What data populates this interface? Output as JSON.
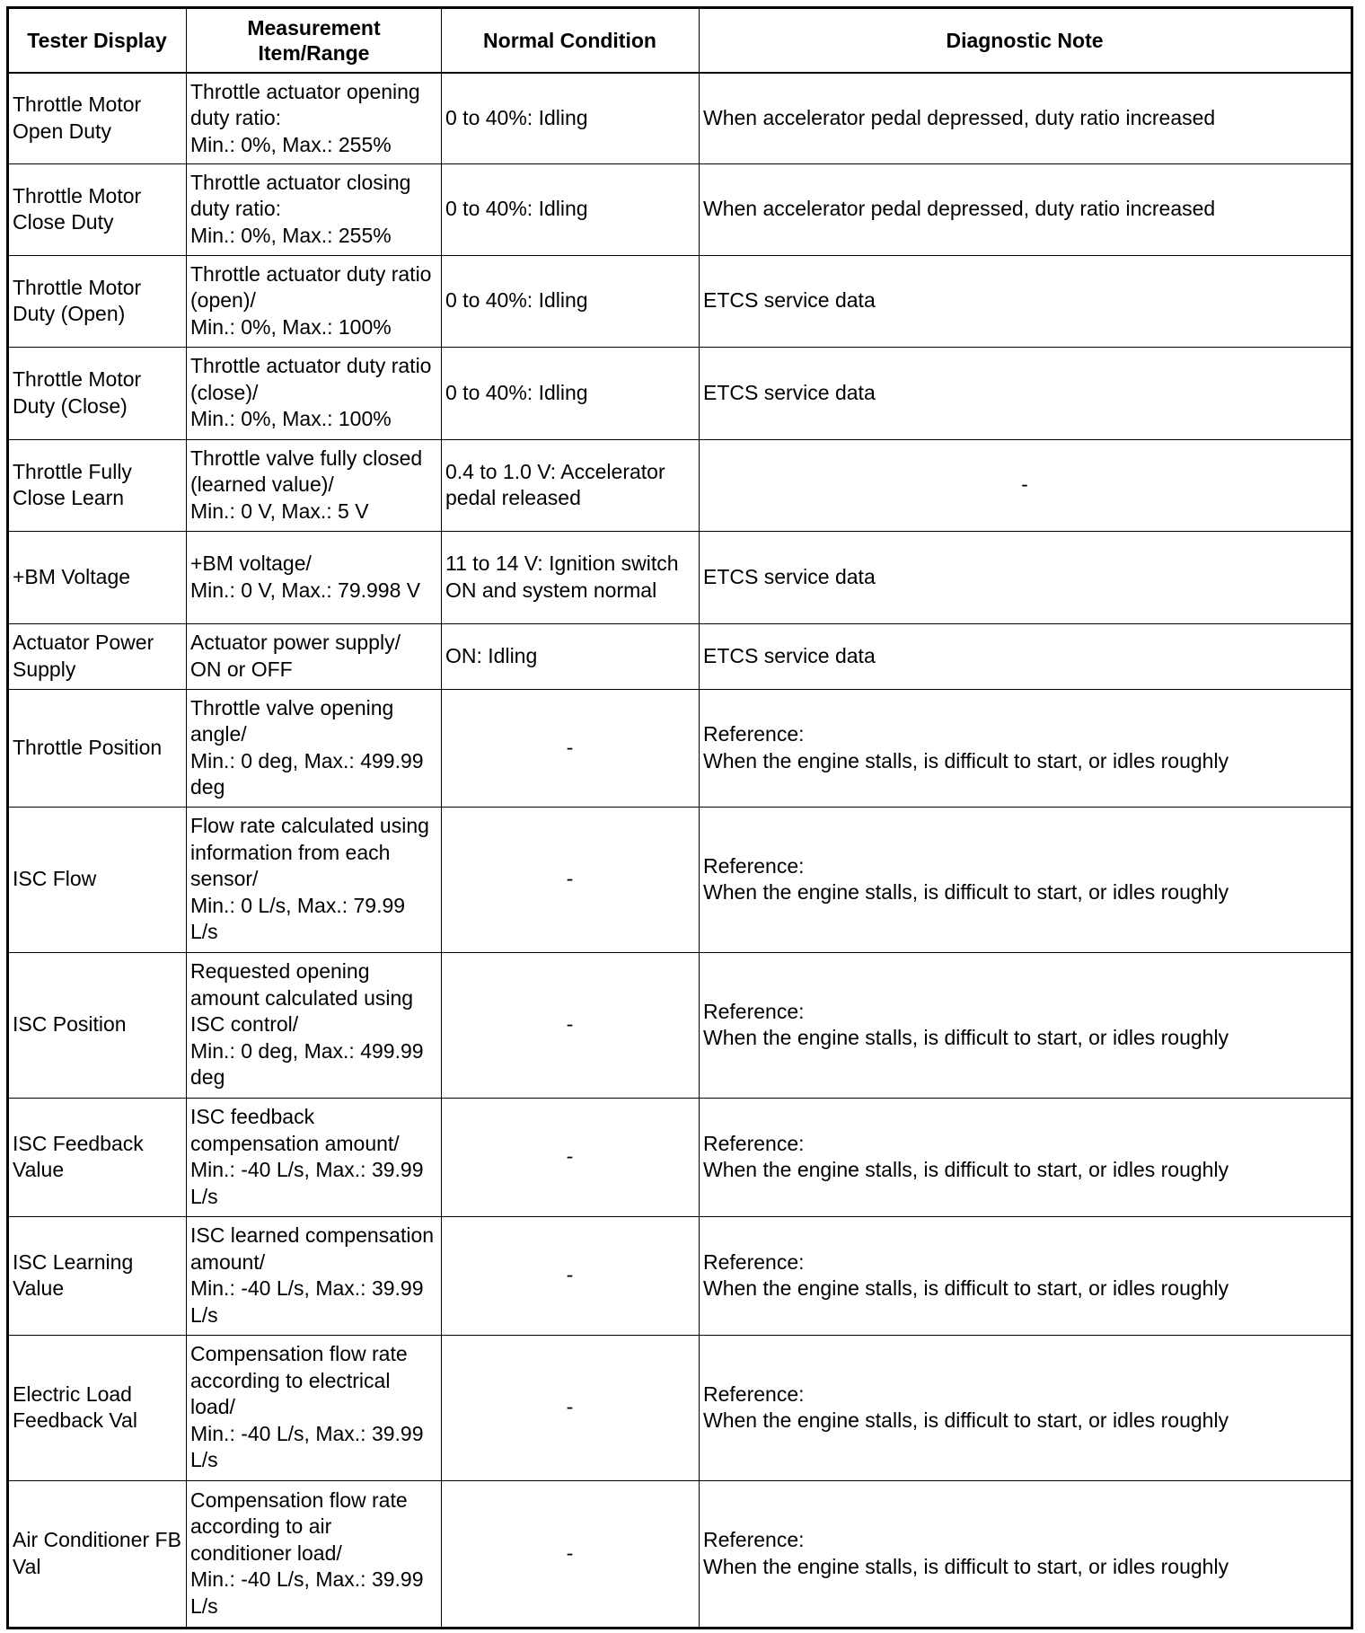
{
  "headers": [
    "Tester Display",
    "Measurement Item/Range",
    "Normal Condition",
    "Diagnostic Note"
  ],
  "rows": [
    {
      "display": "Throttle Motor Open Duty",
      "range": "Throttle actuator opening duty ratio:\nMin.: 0%, Max.: 255%",
      "normal": "0 to 40%: Idling",
      "note": "When accelerator pedal depressed, duty ratio increased"
    },
    {
      "display": "Throttle Motor Close Duty",
      "range": "Throttle actuator closing duty ratio:\nMin.: 0%, Max.: 255%",
      "normal": "0 to 40%: Idling",
      "note": "When accelerator pedal depressed, duty ratio increased"
    },
    {
      "display": "Throttle Motor Duty (Open)",
      "range": "Throttle actuator duty ratio (open)/\nMin.: 0%, Max.: 100%",
      "normal": "0 to 40%: Idling",
      "note": "ETCS service data"
    },
    {
      "display": "Throttle Motor Duty (Close)",
      "range": "Throttle actuator duty ratio (close)/\nMin.: 0%, Max.: 100%",
      "normal": "0 to 40%: Idling",
      "note": "ETCS service data"
    },
    {
      "display": "Throttle Fully Close Learn",
      "range": "Throttle valve fully closed (learned value)/\nMin.: 0 V, Max.: 5 V",
      "normal": "0.4 to 1.0 V: Accelerator pedal released",
      "note": "-"
    },
    {
      "display": "+BM Voltage",
      "range": "+BM voltage/\nMin.: 0 V, Max.: 79.998 V",
      "normal": "11 to 14 V: Ignition switch ON and system normal",
      "note": "ETCS service data"
    },
    {
      "display": "Actuator Power Supply",
      "range": "Actuator power supply/\nON or OFF",
      "normal": "ON: Idling",
      "note": "ETCS service data"
    },
    {
      "display": "Throttle Position",
      "range": "Throttle valve opening angle/\nMin.: 0 deg, Max.: 499.99 deg",
      "normal": "-",
      "note": "Reference:\nWhen the engine stalls, is difficult to start, or idles roughly"
    },
    {
      "display": "ISC Flow",
      "range": "Flow rate calculated using information from each sensor/\nMin.: 0 L/s, Max.: 79.99 L/s",
      "normal": "-",
      "note": "Reference:\nWhen the engine stalls, is difficult to start, or idles roughly"
    },
    {
      "display": "ISC Position",
      "range": "Requested opening amount calculated using ISC control/\nMin.: 0 deg, Max.: 499.99 deg",
      "normal": "-",
      "note": "Reference:\nWhen the engine stalls, is difficult to start, or idles roughly"
    },
    {
      "display": "ISC Feedback Value",
      "range": "ISC feedback compensation amount/\nMin.: -40 L/s, Max.: 39.99 L/s",
      "normal": "-",
      "note": "Reference:\nWhen the engine stalls, is difficult to start, or idles roughly"
    },
    {
      "display": "ISC Learning Value",
      "range": "ISC learned compensation amount/\nMin.: -40 L/s, Max.: 39.99 L/s",
      "normal": "-",
      "note": "Reference:\nWhen the engine stalls, is difficult to start, or idles roughly"
    },
    {
      "display": "Electric Load Feedback Val",
      "range": "Compensation flow rate according to electrical load/\nMin.: -40 L/s, Max.: 39.99 L/s",
      "normal": "-",
      "note": "Reference:\nWhen the engine stalls, is difficult to start, or idles roughly"
    },
    {
      "display": "Air Conditioner FB Val",
      "range": "Compensation flow rate according to air conditioner load/\nMin.: -40 L/s, Max.: 39.99 L/s",
      "normal": "-",
      "note": "Reference:\nWhen the engine stalls, is difficult to start, or idles roughly"
    }
  ]
}
